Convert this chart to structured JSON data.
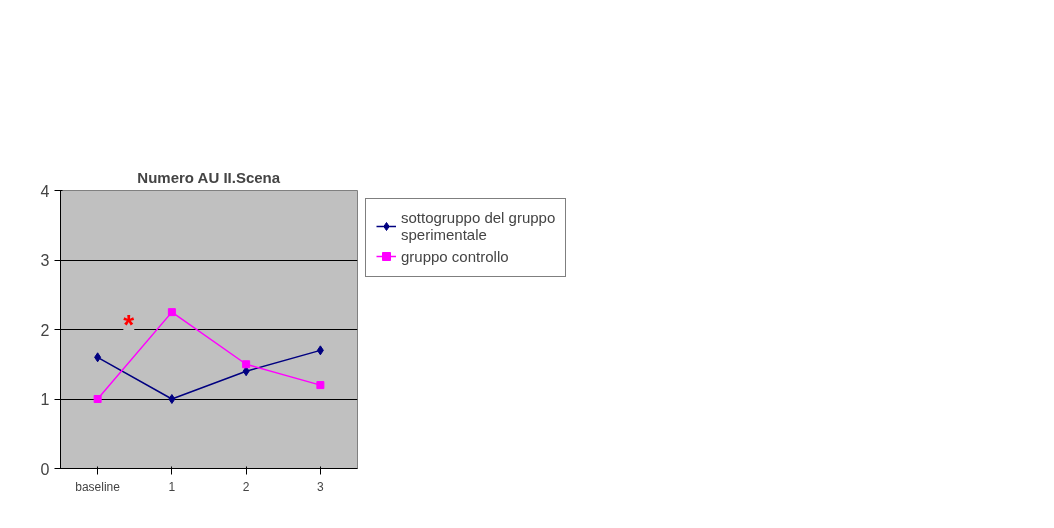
{
  "chart_data": {
    "type": "line",
    "title": "Numero AU II.Scena",
    "categories": [
      "baseline",
      "1",
      "2",
      "3"
    ],
    "series": [
      {
        "name": "sottogruppo del gruppo sperimentale",
        "color": "#000080",
        "marker": "diamond",
        "values": [
          1.6,
          1.0,
          1.4,
          1.7
        ]
      },
      {
        "name": "gruppo controllo",
        "color": "#ff00ff",
        "marker": "square",
        "values": [
          1.0,
          2.25,
          1.5,
          1.2
        ]
      }
    ],
    "ylim": [
      0,
      4
    ],
    "yticks": [
      0,
      1,
      2,
      3,
      4
    ],
    "grid": "y",
    "legend": "right",
    "annotations": [
      "*"
    ]
  }
}
